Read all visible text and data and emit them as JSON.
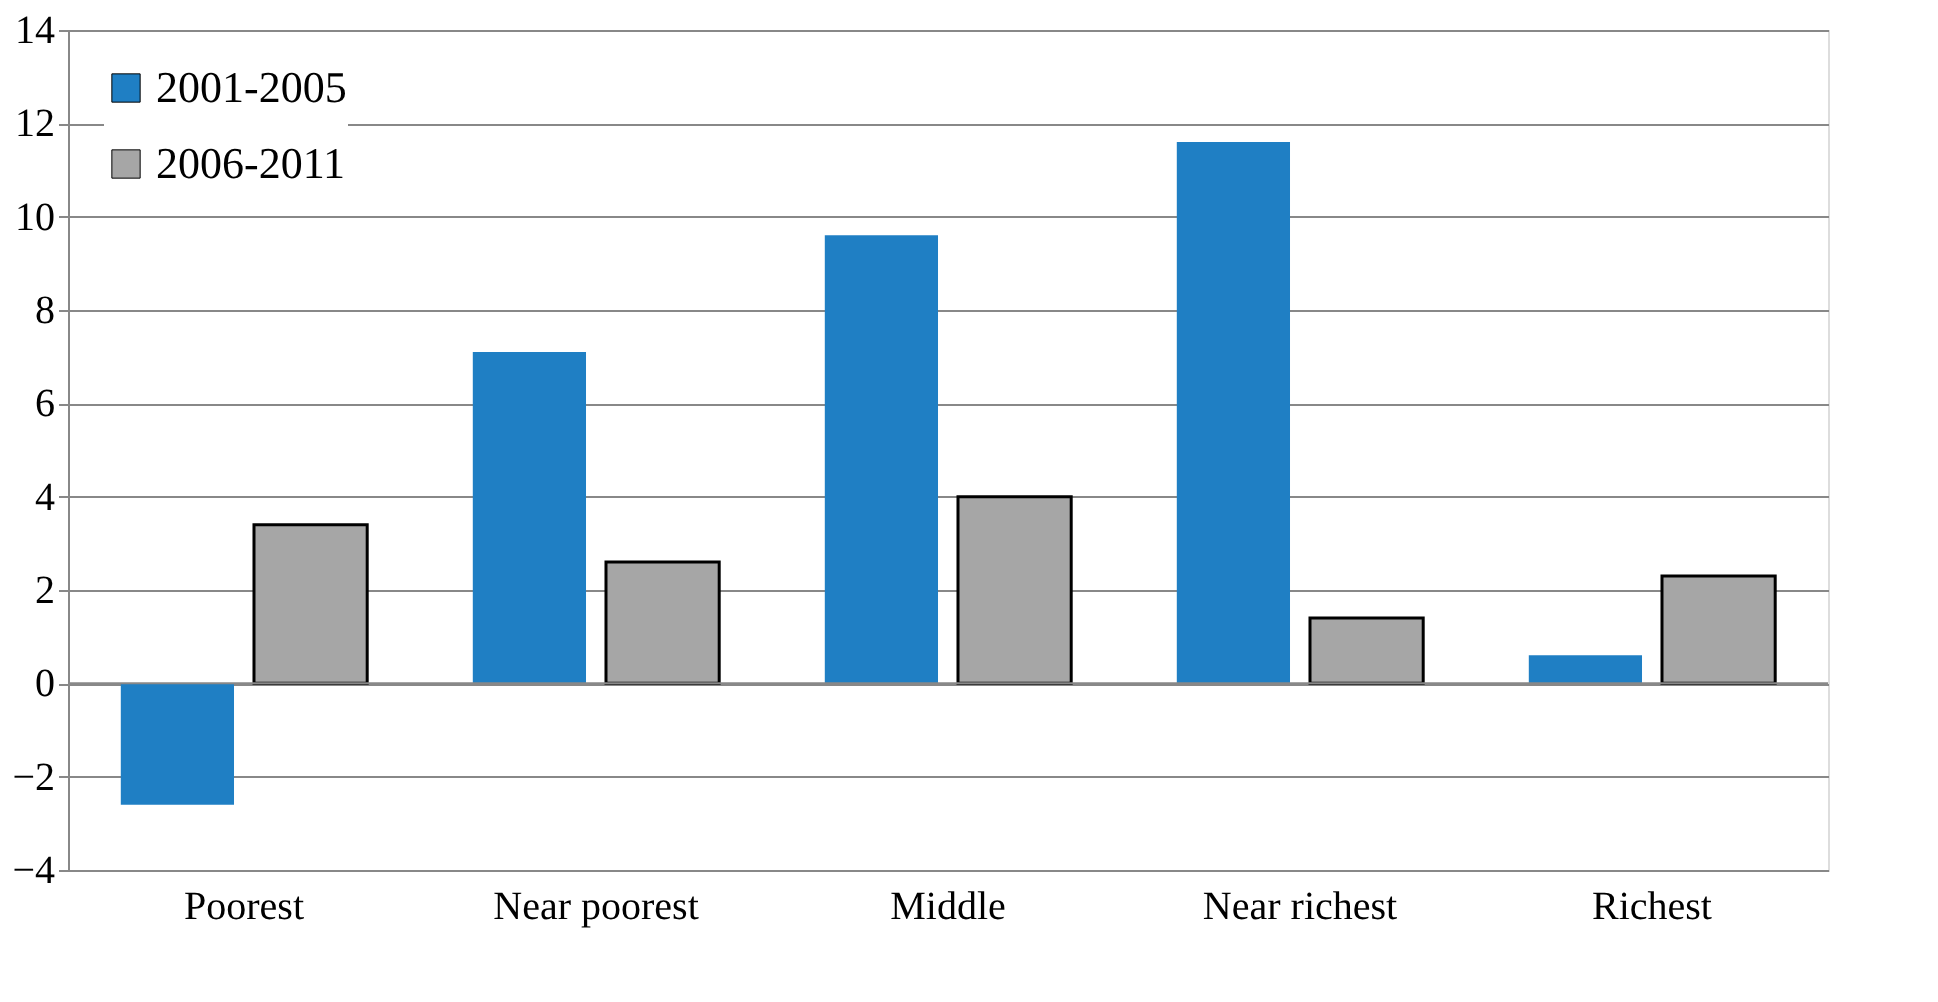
{
  "chart_data": {
    "type": "bar",
    "categories": [
      "Poorest",
      "Near poorest",
      "Middle",
      "Near richest",
      "Richest"
    ],
    "series": [
      {
        "name": "2001-2005",
        "color": "#1f7fc4",
        "values": [
          -2.6,
          7.1,
          9.6,
          11.6,
          0.6
        ]
      },
      {
        "name": "2006-2011",
        "color": "#a6a6a6",
        "values": [
          3.4,
          2.6,
          4.0,
          1.4,
          2.3
        ]
      }
    ],
    "ylim": [
      -4,
      14
    ],
    "yticks": [
      -4,
      -2,
      0,
      2,
      4,
      6,
      8,
      10,
      12,
      14
    ],
    "grid": "y",
    "legend": "top left"
  }
}
